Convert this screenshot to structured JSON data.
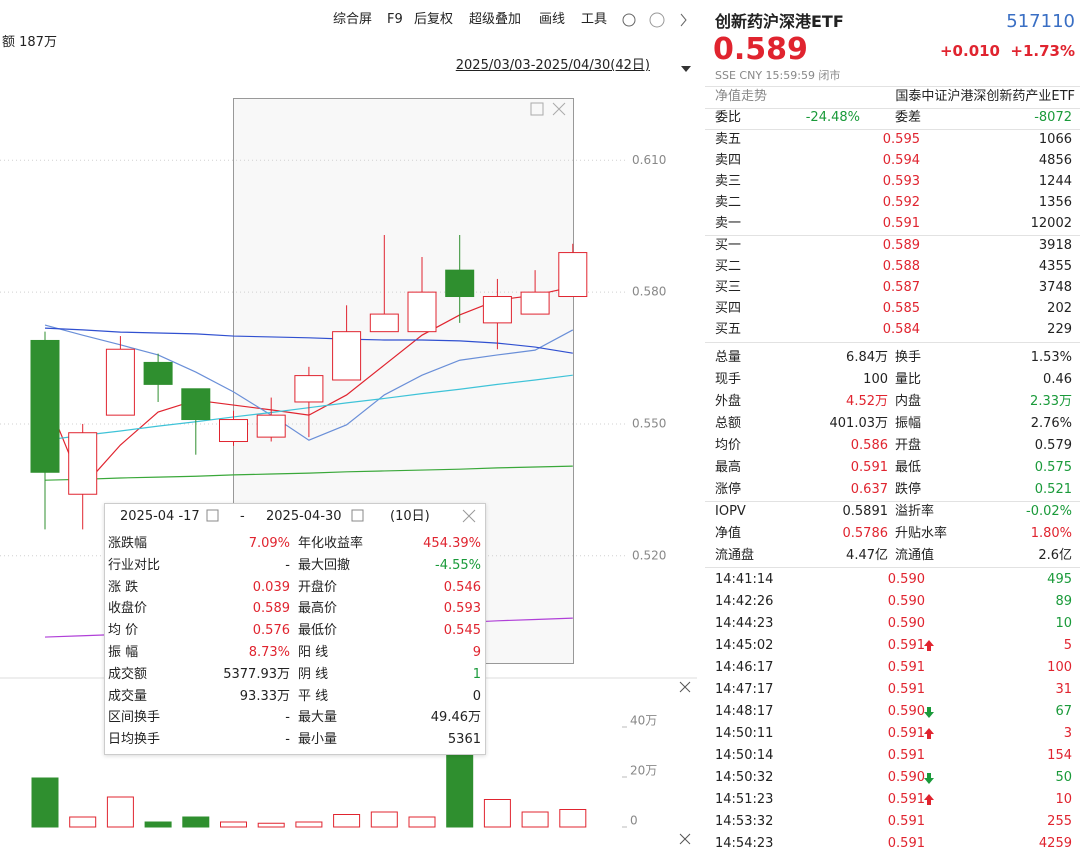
{
  "toolbar": [
    "综合屏",
    "F9",
    "后复权",
    "超级叠加",
    "画线",
    "工具"
  ],
  "volume_summary": "额 187万",
  "date_range": "2025/03/03-2025/04/30(42日)",
  "chart_data": [
    {
      "type": "candlestick",
      "open": [
        0.569,
        0.534,
        0.552,
        0.564,
        0.558,
        0.546,
        0.547,
        0.555,
        0.56,
        0.571,
        0.571,
        0.585,
        0.573,
        0.575,
        0.579
      ],
      "high": [
        0.571,
        0.55,
        0.57,
        0.566,
        0.558,
        0.553,
        0.556,
        0.563,
        0.577,
        0.593,
        0.588,
        0.593,
        0.583,
        0.585,
        0.591
      ],
      "low": [
        0.526,
        0.526,
        0.552,
        0.555,
        0.543,
        0.545,
        0.546,
        0.547,
        0.56,
        0.571,
        0.571,
        0.573,
        0.567,
        0.575,
        0.579
      ],
      "close": [
        0.539,
        0.548,
        0.567,
        0.559,
        0.551,
        0.551,
        0.552,
        0.561,
        0.571,
        0.575,
        0.58,
        0.579,
        0.579,
        0.58,
        0.589
      ],
      "up_color": "#e0242f",
      "down_color": "#2f8f2f",
      "ylim": [
        0.494,
        0.626
      ],
      "yticks": [
        {
          "value": 0.61,
          "label": "0.610"
        },
        {
          "value": 0.58,
          "label": "0.580"
        },
        {
          "value": 0.55,
          "label": "0.550"
        },
        {
          "value": 0.52,
          "label": "0.520"
        }
      ],
      "series": [
        {
          "color": "#e0242f",
          "values": [
            0.5566,
            0.5356,
            0.5452,
            0.5527,
            0.5554,
            0.5543,
            0.5532,
            0.552,
            0.5566,
            0.5634,
            0.5702,
            0.5748,
            0.5782,
            0.5793,
            0.5812
          ]
        },
        {
          "color": "#6a8fd8",
          "values": [
            0.5725,
            0.5702,
            0.568,
            0.5657,
            0.5618,
            0.5573,
            0.552,
            0.5463,
            0.5498,
            0.5566,
            0.5611,
            0.5645,
            0.5657,
            0.5668,
            0.5714
          ]
        },
        {
          "color": "#3050d0",
          "values": [
            0.5718,
            0.5714,
            0.5709,
            0.5707,
            0.5705,
            0.57,
            0.5698,
            0.5696,
            0.5693,
            0.5691,
            0.5691,
            0.5689,
            0.5684,
            0.5675,
            0.5661
          ]
        },
        {
          "color": "#3fc3d8",
          "values": [
            0.5463,
            0.5474,
            0.5484,
            0.5495,
            0.5505,
            0.5516,
            0.5526,
            0.5537,
            0.5548,
            0.5558,
            0.5569,
            0.5579,
            0.559,
            0.56,
            0.5611
          ]
        },
        {
          "color": "#3aa83a",
          "values": [
            0.5372,
            0.5374,
            0.5377,
            0.5379,
            0.5381,
            0.5384,
            0.5386,
            0.5388,
            0.5391,
            0.5393,
            0.5395,
            0.5397,
            0.54,
            0.5402,
            0.5404
          ]
        },
        {
          "color": "#b040d8",
          "values": [
            0.5015,
            0.5018,
            0.5021,
            0.5024,
            0.5027,
            0.503,
            0.5033,
            0.5036,
            0.5039,
            0.5042,
            0.5045,
            0.5048,
            0.5052,
            0.5055,
            0.5058
          ]
        }
      ]
    },
    {
      "type": "bar",
      "values": [
        19.6,
        4,
        12,
        2,
        4,
        2,
        1.5,
        2,
        5,
        6,
        4,
        33,
        11,
        6,
        7
      ],
      "ylim": [
        0,
        46
      ],
      "yticks": [
        {
          "value": 40,
          "label": "40万"
        },
        {
          "value": 20,
          "label": "20万"
        },
        0
      ]
    }
  ],
  "range_stats": {
    "start": "2025-04 -17",
    "separator": "-",
    "end": "2025-04-30",
    "days": "(10日)",
    "rows": [
      {
        "cells": [
          "涨跌幅",
          "7.09%",
          "年化收益率",
          "454.39%"
        ],
        "colors": [
          "#e0242f",
          "#e0242f"
        ]
      },
      {
        "cells": [
          "行业对比",
          "-",
          "最大回撤",
          "-4.55%"
        ],
        "colors": [
          "#222",
          "#1a9a3a"
        ]
      },
      {
        "cells": [
          "涨 跌",
          "0.039",
          "开盘价",
          "0.546"
        ],
        "colors": [
          "#e0242f",
          "#e0242f"
        ]
      },
      {
        "cells": [
          "收盘价",
          "0.589",
          "最高价",
          "0.593"
        ],
        "colors": [
          "#e0242f",
          "#e0242f"
        ]
      },
      {
        "cells": [
          "均 价",
          "0.576",
          "最低价",
          "0.545"
        ],
        "colors": [
          "#e0242f",
          "#e0242f"
        ]
      },
      {
        "cells": [
          "振 幅",
          "8.73%",
          "阳 线",
          "9"
        ],
        "colors": [
          "#e0242f",
          "#e0242f"
        ]
      },
      {
        "cells": [
          "成交额",
          "5377.93万",
          "阴 线",
          "1"
        ],
        "colors": [
          "#222",
          "#1a9a3a"
        ]
      },
      {
        "cells": [
          "成交量",
          "93.33万",
          "平 线",
          "0"
        ],
        "colors": [
          "#222",
          "#222"
        ]
      },
      {
        "cells": [
          "区间换手",
          "-",
          "最大量",
          "49.46万"
        ],
        "colors": [
          "#222",
          "#222"
        ]
      },
      {
        "cells": [
          "日均换手",
          "-",
          "最小量",
          "5361"
        ],
        "colors": [
          "#222",
          "#222"
        ]
      }
    ]
  },
  "quote": {
    "name": "创新药沪深港ETF",
    "code": "517110",
    "price": "0.589",
    "change": "+0.010",
    "change_pct": "+1.73%",
    "meta": "SSE  CNY  15:59:59  闭市",
    "nav_tab": "净值走势",
    "fund_name": "国泰中证沪港深创新药产业ETF",
    "ratio": [
      "委比",
      "-24.48%",
      "委差",
      "-8072"
    ],
    "asks": [
      [
        "卖五",
        "0.595",
        "1066"
      ],
      [
        "卖四",
        "0.594",
        "4856"
      ],
      [
        "卖三",
        "0.593",
        "1244"
      ],
      [
        "卖二",
        "0.592",
        "1356"
      ],
      [
        "卖一",
        "0.591",
        "12002"
      ]
    ],
    "bids": [
      [
        "买一",
        "0.589",
        "3918"
      ],
      [
        "买二",
        "0.588",
        "4355"
      ],
      [
        "买三",
        "0.587",
        "3748"
      ],
      [
        "买四",
        "0.585",
        "202"
      ],
      [
        "买五",
        "0.584",
        "229"
      ]
    ],
    "stats": [
      {
        "cells": [
          "总量",
          "6.84万",
          "换手",
          "1.53%"
        ],
        "colors": [
          "#222",
          "#222"
        ]
      },
      {
        "cells": [
          "现手",
          "100",
          "量比",
          "0.46"
        ],
        "colors": [
          "#222",
          "#222"
        ]
      },
      {
        "cells": [
          "外盘",
          "4.52万",
          "内盘",
          "2.33万"
        ],
        "colors": [
          "#e0242f",
          "#1a9a3a"
        ]
      },
      {
        "cells": [
          "总额",
          "401.03万",
          "振幅",
          "2.76%"
        ],
        "colors": [
          "#222",
          "#222"
        ]
      },
      {
        "cells": [
          "均价",
          "0.586",
          "开盘",
          "0.579"
        ],
        "colors": [
          "#e0242f",
          "#222"
        ]
      },
      {
        "cells": [
          "最高",
          "0.591",
          "最低",
          "0.575"
        ],
        "colors": [
          "#e0242f",
          "#1a9a3a"
        ]
      },
      {
        "cells": [
          "涨停",
          "0.637",
          "跌停",
          "0.521"
        ],
        "colors": [
          "#e0242f",
          "#1a9a3a"
        ]
      }
    ],
    "fund": [
      {
        "cells": [
          "IOPV",
          "0.5891",
          "溢折率",
          "-0.02%"
        ],
        "colors": [
          "#222",
          "#1a9a3a"
        ]
      },
      {
        "cells": [
          "净值",
          "0.5786",
          "升贴水率",
          "1.80%"
        ],
        "colors": [
          "#e0242f",
          "#e0242f"
        ]
      },
      {
        "cells": [
          "流通盘",
          "4.47亿",
          "流通值",
          "2.6亿"
        ],
        "colors": [
          "#222",
          "#222"
        ]
      }
    ],
    "trades": [
      {
        "time": "14:41:14",
        "price": "0.590",
        "volume": "495",
        "arrow": null,
        "color": "#1a9a3a"
      },
      {
        "time": "14:42:26",
        "price": "0.590",
        "volume": "89",
        "arrow": null,
        "color": "#1a9a3a"
      },
      {
        "time": "14:44:23",
        "price": "0.590",
        "volume": "10",
        "arrow": null,
        "color": "#1a9a3a"
      },
      {
        "time": "14:45:02",
        "price": "0.591",
        "volume": "5",
        "arrow": "up",
        "color": "#e0242f"
      },
      {
        "time": "14:46:17",
        "price": "0.591",
        "volume": "100",
        "arrow": null,
        "color": "#e0242f"
      },
      {
        "time": "14:47:17",
        "price": "0.591",
        "volume": "31",
        "arrow": null,
        "color": "#e0242f"
      },
      {
        "time": "14:48:17",
        "price": "0.590",
        "volume": "67",
        "arrow": "down",
        "color": "#1a9a3a"
      },
      {
        "time": "14:50:11",
        "price": "0.591",
        "volume": "3",
        "arrow": "up",
        "color": "#e0242f"
      },
      {
        "time": "14:50:14",
        "price": "0.591",
        "volume": "154",
        "arrow": null,
        "color": "#e0242f"
      },
      {
        "time": "14:50:32",
        "price": "0.590",
        "volume": "50",
        "arrow": "down",
        "color": "#1a9a3a"
      },
      {
        "time": "14:51:23",
        "price": "0.591",
        "volume": "10",
        "arrow": "up",
        "color": "#e0242f"
      },
      {
        "time": "14:53:32",
        "price": "0.591",
        "volume": "255",
        "arrow": null,
        "color": "#e0242f"
      },
      {
        "time": "14:54:23",
        "price": "0.591",
        "volume": "4259",
        "arrow": null,
        "color": "#e0242f"
      }
    ]
  }
}
